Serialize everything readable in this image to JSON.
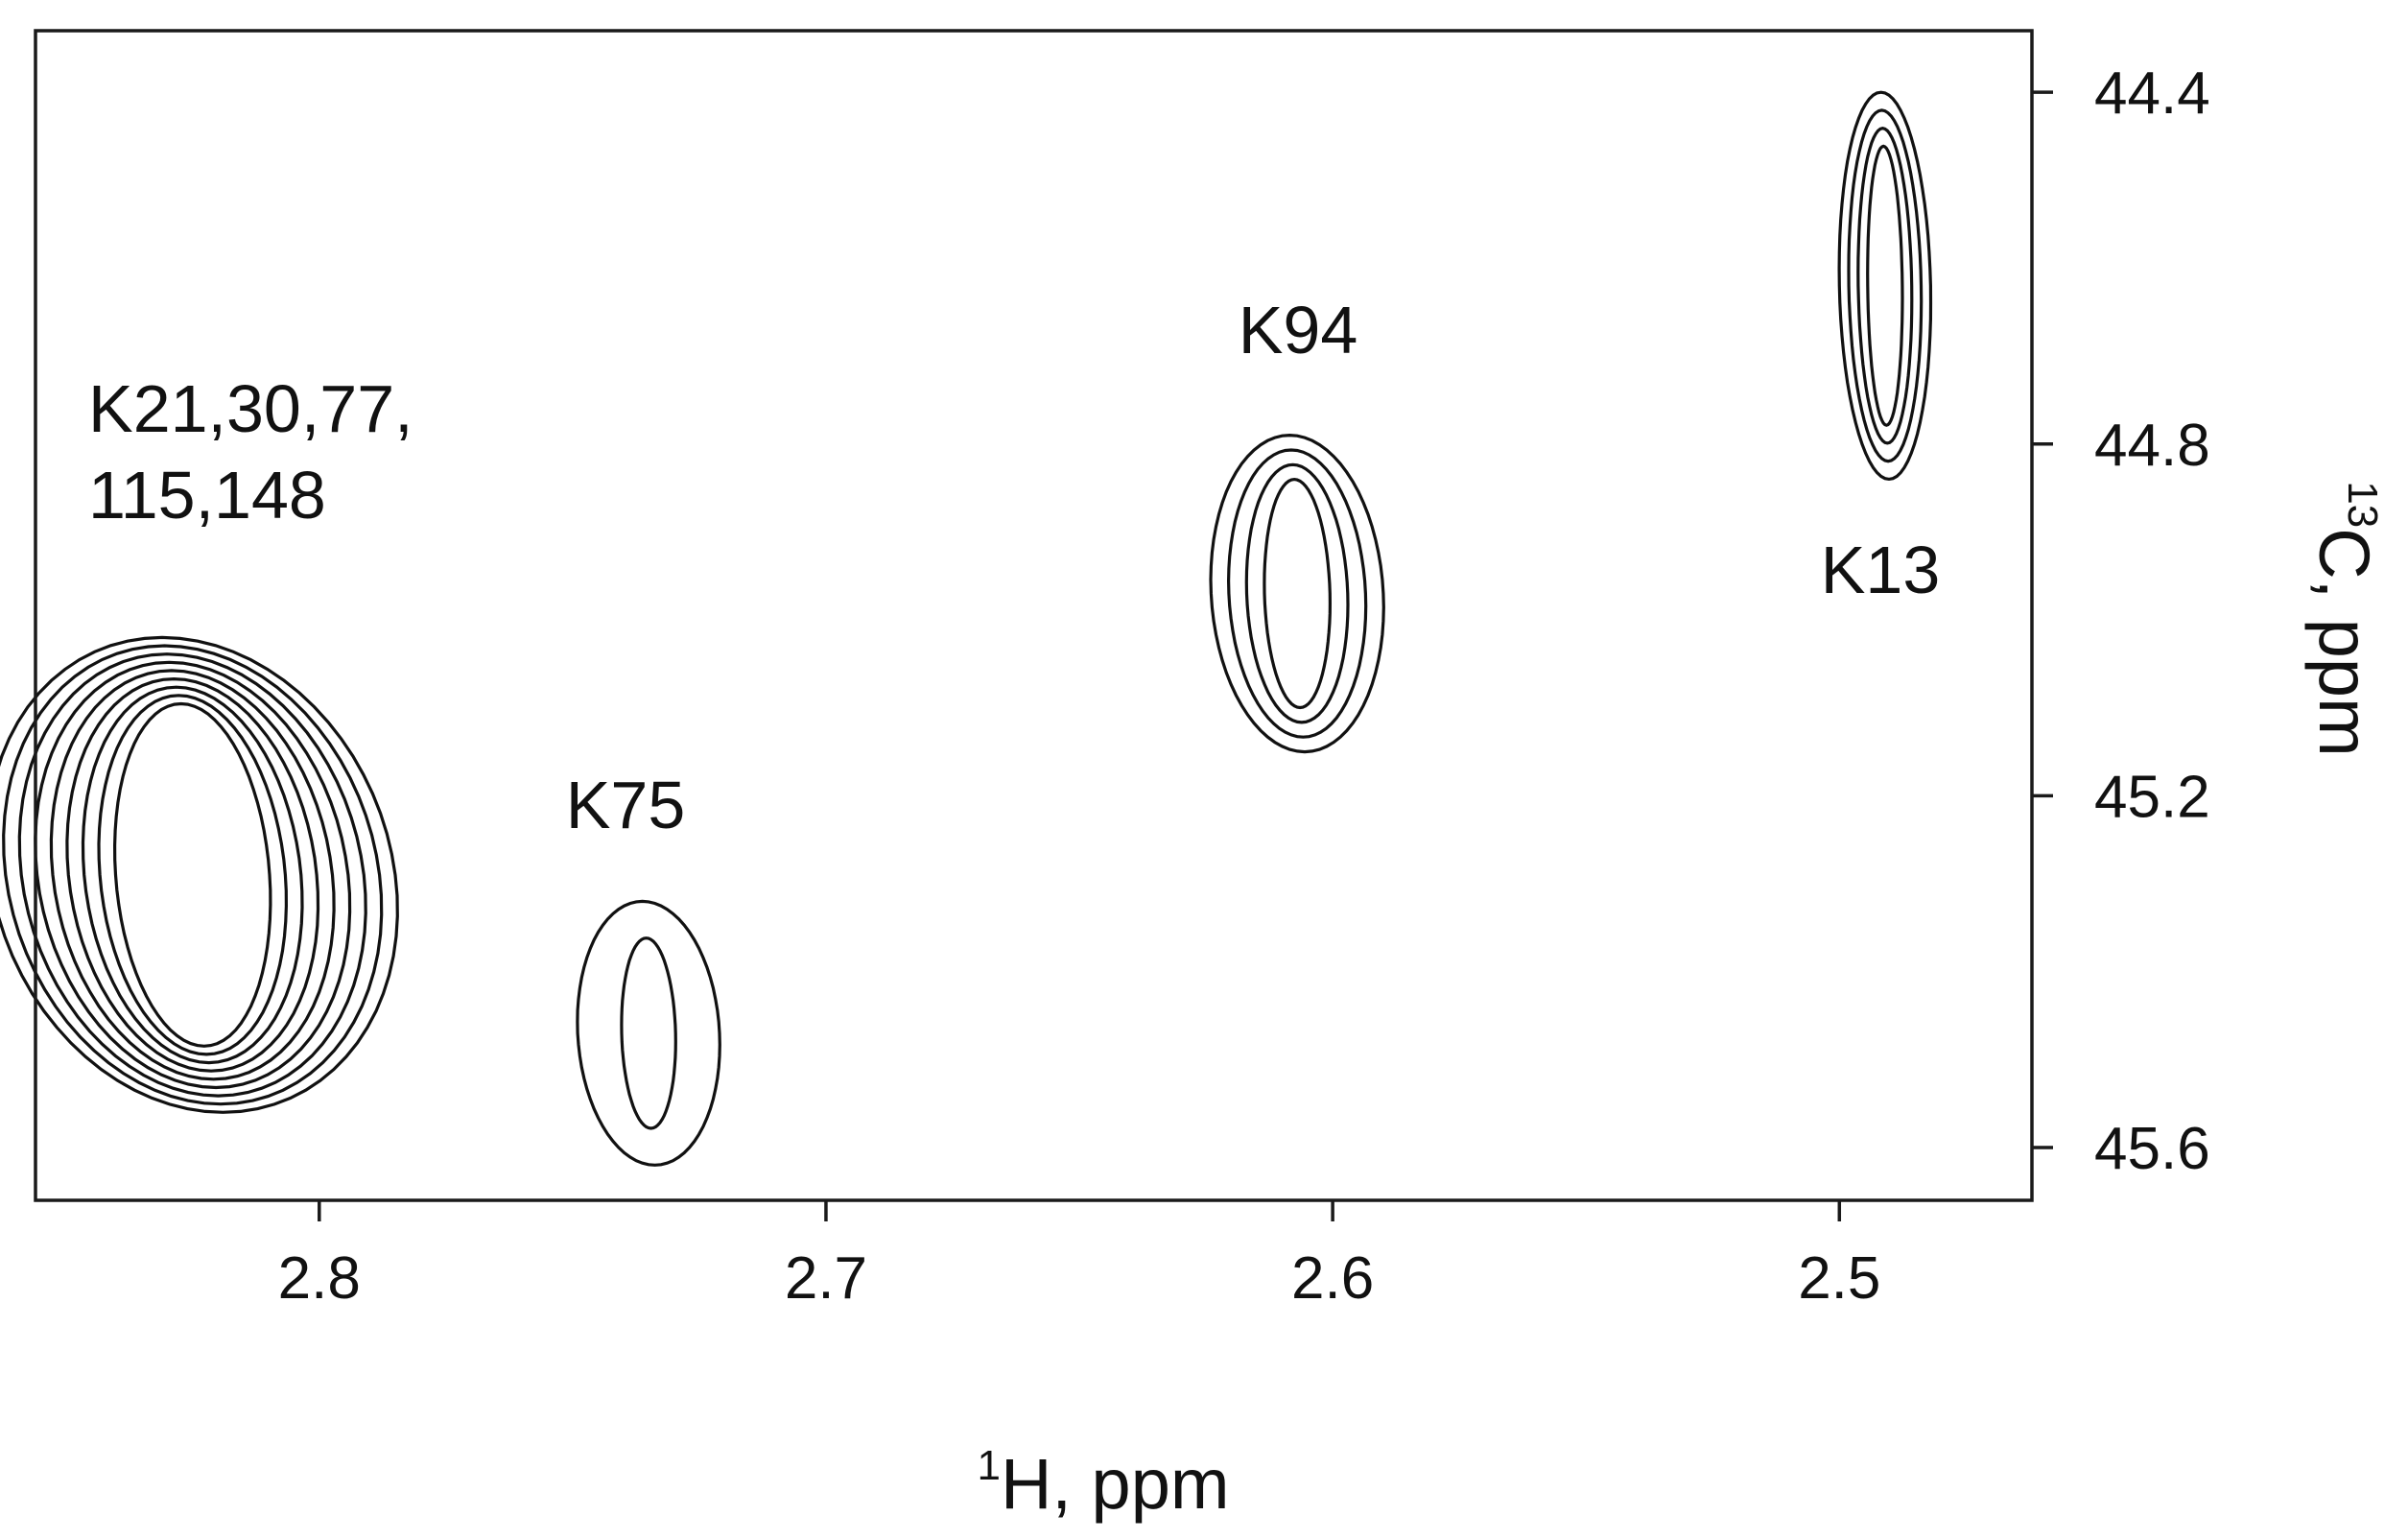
{
  "chart_data": {
    "type": "nmr-2d-contour",
    "x_axis": {
      "label_sup": "1",
      "label_text": "H, ppm",
      "ticks": [
        "2.8",
        "2.7",
        "2.6",
        "2.5"
      ],
      "tick_values": [
        2.8,
        2.7,
        2.6,
        2.5
      ],
      "range": [
        2.856,
        2.462
      ],
      "reversed": true
    },
    "y_axis": {
      "label_sup": "13",
      "label_text": "C, ppm",
      "ticks": [
        "44.4",
        "44.8",
        "45.2",
        "45.6"
      ],
      "tick_values": [
        44.4,
        44.8,
        45.2,
        45.6
      ],
      "range": [
        44.33,
        45.66
      ],
      "reversed": true,
      "side": "right"
    },
    "peaks": [
      {
        "label_lines": [
          "K21,30,77,",
          "115,148"
        ],
        "x": 2.825,
        "y": 45.29,
        "half_width_ppm": 0.04,
        "half_height_ppm": 0.27,
        "levels": 9
      },
      {
        "label_lines": [
          "K75"
        ],
        "x": 2.735,
        "y": 45.47,
        "half_width_ppm": 0.014,
        "half_height_ppm": 0.15,
        "levels": 2
      },
      {
        "label_lines": [
          "K94"
        ],
        "x": 2.607,
        "y": 44.97,
        "half_width_ppm": 0.017,
        "half_height_ppm": 0.18,
        "levels": 4
      },
      {
        "label_lines": [
          "K13"
        ],
        "x": 2.491,
        "y": 44.62,
        "half_width_ppm": 0.009,
        "half_height_ppm": 0.22,
        "levels": 4
      }
    ]
  }
}
